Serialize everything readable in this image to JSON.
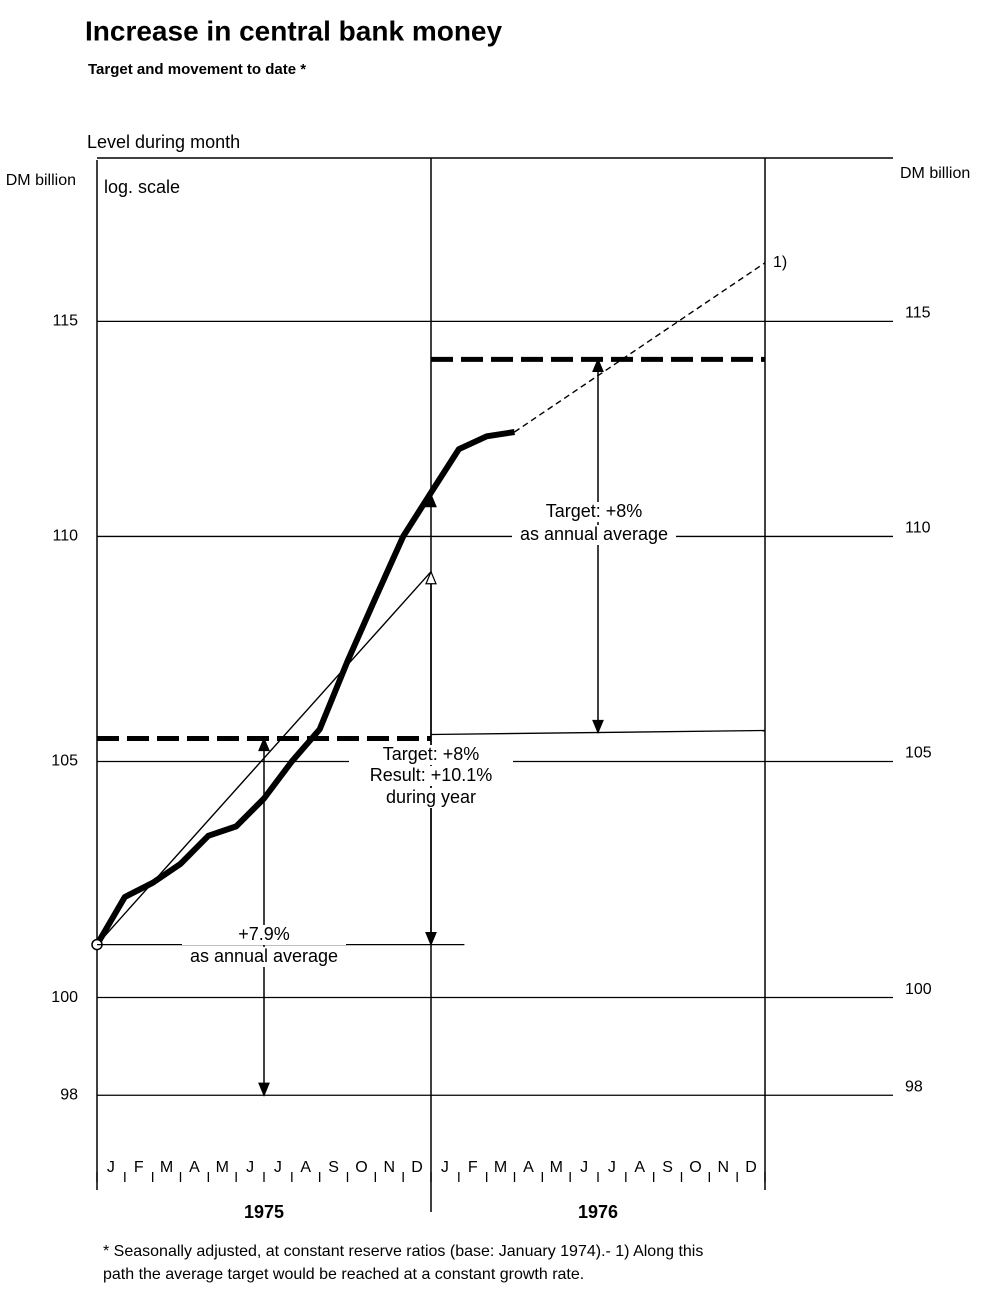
{
  "chart_data": {
    "type": "line",
    "title": "Increase in central bank money",
    "subtitle": "Target and movement to date *",
    "y_label": "Level during month",
    "y_unit": "DM billion",
    "scale_note": "log. scale",
    "log": true,
    "grid": true,
    "ylim": [
      96.1,
      118.9
    ],
    "yticks": [
      98,
      100,
      105,
      110,
      115
    ],
    "xlim": [
      0,
      24
    ],
    "categories": [
      "J",
      "F",
      "M",
      "A",
      "M",
      "J",
      "J",
      "A",
      "S",
      "O",
      "N",
      "D",
      "J",
      "F",
      "M",
      "A",
      "M",
      "J",
      "J",
      "A",
      "S",
      "O",
      "N",
      "D"
    ],
    "years": [
      "1975",
      "1976"
    ],
    "series": [
      {
        "color": "#000000",
        "x": [
          0,
          1,
          2,
          3,
          4,
          5,
          6,
          7,
          8,
          9,
          10,
          11,
          12,
          13,
          14,
          15
        ],
        "values": [
          101.1,
          102.1,
          102.4,
          102.8,
          103.4,
          103.6,
          104.2,
          105.0,
          105.7,
          107.2,
          108.6,
          110.0,
          111.0,
          112.0,
          112.3,
          112.4
        ]
      }
    ],
    "trend": {
      "x": [
        0,
        12
      ],
      "values": [
        101.1,
        109.2
      ]
    },
    "projection": {
      "x": [
        15,
        24
      ],
      "values": [
        112.4,
        116.4
      ],
      "note": "1)"
    },
    "targets": [
      {
        "x": [
          0,
          12
        ],
        "value": 105.5
      },
      {
        "x": [
          12,
          24
        ],
        "value": 114.1
      }
    ],
    "annotations": [
      {
        "x": 6,
        "lines": [
          "+7.9%",
          "as annual average"
        ]
      },
      {
        "x": 12,
        "lines": [
          "Target: +8%",
          "Result: +10.1%",
          "during year"
        ]
      },
      {
        "x": 18,
        "lines": [
          "Target: +8%",
          "as annual average"
        ]
      }
    ],
    "footnote": [
      "* Seasonally adjusted, at constant reserve ratios (base: January 1974).- 1) Along this",
      "path the average target would be reached at a constant growth rate."
    ]
  }
}
